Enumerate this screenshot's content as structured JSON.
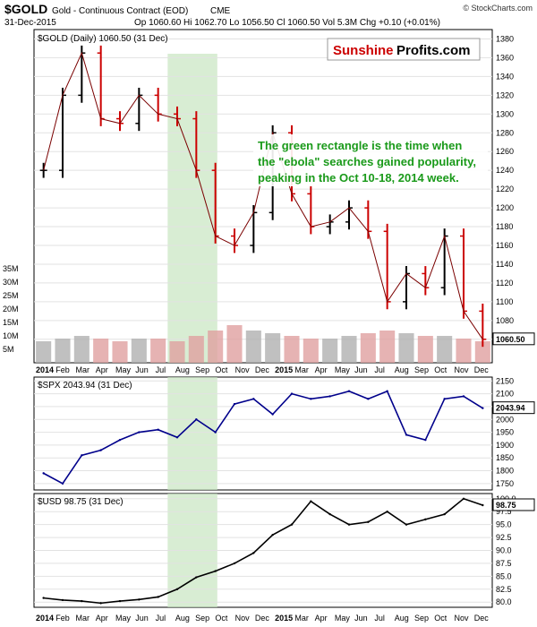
{
  "header": {
    "symbol": "$GOLD",
    "name": "Gold - Continuous Contract (EOD)",
    "exchange": "CME",
    "date": "31-Dec-2015",
    "quote": "Op 1060.60  Hi 1062.70  Lo 1056.50  Cl 1060.50  Vol 5.3M  Chg +0.10 (+0.01%)",
    "copyright": "© StockCharts.com"
  },
  "brand": {
    "part1": "Sunshine",
    "part2": "Profits.com"
  },
  "annotation": {
    "lines": [
      "The green rectangle is the time when",
      "the \"ebola\" searches gained popularity,",
      "peaking in the Oct 10-18, 2014 week."
    ]
  },
  "x_axis_labels": [
    "2014",
    "Feb",
    "Mar",
    "Apr",
    "May",
    "Jun",
    "Jul",
    "Aug",
    "Sep",
    "Oct",
    "Nov",
    "Dec",
    "2015",
    "Mar",
    "Apr",
    "May",
    "Jun",
    "Jul",
    "Aug",
    "Sep",
    "Oct",
    "Nov",
    "Dec"
  ],
  "colors": {
    "up": "#000000",
    "down": "#cc0000",
    "spx_line": "#00008b",
    "usd_line": "#000000",
    "highlight": "#c8e6c0",
    "annotation_text": "#1a9a1a",
    "brand_red": "#cc0000",
    "vol_up": "#b0b0b0",
    "vol_down": "#e0a0a0"
  },
  "chart_data": [
    {
      "type": "ohlc",
      "legend": "$GOLD (Daily) 1060.50 (31 Dec)",
      "last_value_label": "1060.50",
      "x": [
        "2014-01",
        "2014-02",
        "2014-03",
        "2014-04",
        "2014-05",
        "2014-06",
        "2014-07",
        "2014-08",
        "2014-09",
        "2014-10",
        "2014-11",
        "2014-12",
        "2015-01",
        "2015-02",
        "2015-03",
        "2015-04",
        "2015-05",
        "2015-06",
        "2015-07",
        "2015-08",
        "2015-09",
        "2015-10",
        "2015-11",
        "2015-12"
      ],
      "close": [
        1240,
        1320,
        1365,
        1295,
        1290,
        1320,
        1300,
        1295,
        1240,
        1170,
        1160,
        1195,
        1280,
        1215,
        1180,
        1185,
        1200,
        1175,
        1100,
        1130,
        1115,
        1170,
        1090,
        1060
      ],
      "ylim": [
        1035,
        1390
      ],
      "yticks": [
        1060,
        1080,
        1100,
        1120,
        1140,
        1160,
        1180,
        1200,
        1220,
        1240,
        1260,
        1280,
        1300,
        1320,
        1340,
        1360,
        1380
      ],
      "volume": {
        "ylim": [
          0,
          40
        ],
        "ytick_labels": [
          "5M",
          "10M",
          "15M",
          "20M",
          "25M",
          "30M",
          "35M"
        ],
        "values": [
          8,
          9,
          10,
          9,
          8,
          9,
          9,
          8,
          10,
          12,
          14,
          12,
          11,
          10,
          9,
          9,
          10,
          11,
          12,
          11,
          10,
          10,
          9,
          8
        ]
      },
      "highlight": {
        "from": "2014-08",
        "to": "2014-10"
      }
    },
    {
      "type": "line",
      "legend": "$SPX 2043.94 (31 Dec)",
      "last_value_label": "2043.94",
      "x": [
        "2014-01",
        "2014-02",
        "2014-03",
        "2014-04",
        "2014-05",
        "2014-06",
        "2014-07",
        "2014-08",
        "2014-09",
        "2014-10",
        "2014-11",
        "2014-12",
        "2015-01",
        "2015-02",
        "2015-03",
        "2015-04",
        "2015-05",
        "2015-06",
        "2015-07",
        "2015-08",
        "2015-09",
        "2015-10",
        "2015-11",
        "2015-12"
      ],
      "values": [
        1790,
        1750,
        1860,
        1880,
        1920,
        1950,
        1960,
        1930,
        2000,
        1950,
        2060,
        2080,
        2020,
        2100,
        2080,
        2090,
        2110,
        2080,
        2110,
        1940,
        1920,
        2080,
        2090,
        2043.94
      ],
      "ylim": [
        1725,
        2165
      ],
      "yticks": [
        1750,
        1800,
        1850,
        1900,
        1950,
        2000,
        2050,
        2100,
        2150
      ],
      "highlight": {
        "from": "2014-08",
        "to": "2014-10"
      }
    },
    {
      "type": "line",
      "legend": "$USD 98.75 (31 Dec)",
      "last_value_label": "98.75",
      "x": [
        "2014-01",
        "2014-02",
        "2014-03",
        "2014-04",
        "2014-05",
        "2014-06",
        "2014-07",
        "2014-08",
        "2014-09",
        "2014-10",
        "2014-11",
        "2014-12",
        "2015-01",
        "2015-02",
        "2015-03",
        "2015-04",
        "2015-05",
        "2015-06",
        "2015-07",
        "2015-08",
        "2015-09",
        "2015-10",
        "2015-11",
        "2015-12"
      ],
      "values": [
        80.8,
        80.4,
        80.2,
        79.8,
        80.2,
        80.5,
        81.0,
        82.5,
        84.8,
        86.0,
        87.5,
        89.5,
        93.0,
        95.0,
        99.5,
        97.0,
        95.0,
        95.5,
        97.5,
        95.0,
        96.0,
        97.0,
        100.0,
        98.75
      ],
      "ylim": [
        79,
        101
      ],
      "yticks": [
        80.0,
        82.5,
        85.0,
        87.5,
        90.0,
        92.5,
        95.0,
        97.5,
        100.0
      ],
      "ytick_labels": [
        "80.0",
        "82.5",
        "85.0",
        "87.5",
        "90.0",
        "92.5",
        "95.0",
        "97.5",
        "100.0"
      ],
      "highlight": {
        "from": "2014-08",
        "to": "2014-10"
      }
    }
  ]
}
